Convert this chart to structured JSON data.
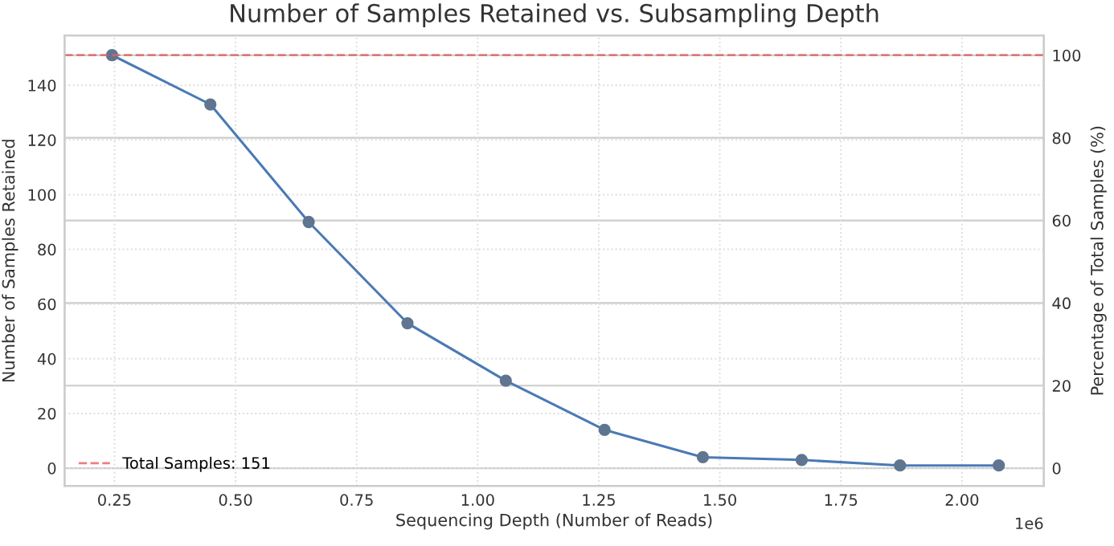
{
  "chart_data": {
    "type": "line",
    "title": "Number of Samples Retained vs. Subsampling Depth",
    "xlabel": "Sequencing Depth (Number of Reads)",
    "ylabel": "Number of Samples Retained",
    "y2label": "Percentage of Total Samples (%)",
    "x": [
      0.245,
      0.448,
      0.651,
      0.855,
      1.058,
      1.262,
      1.465,
      1.669,
      1.872,
      2.076
    ],
    "series": [
      {
        "color": "#4a7ab5",
        "values": [
          151,
          133,
          90,
          53,
          32,
          14,
          4,
          3,
          1,
          1
        ]
      }
    ],
    "xlim": [
      0.147,
      2.169
    ],
    "xticks": [
      0.25,
      {
        "value": 0.5,
        "label": "0.50"
      },
      0.75,
      {
        "value": 1.0,
        "label": "1.00"
      },
      1.25,
      {
        "value": 1.5,
        "label": "1.50"
      },
      1.75,
      {
        "value": 2.0,
        "label": "2.00"
      }
    ],
    "ylim": [
      -6.5,
      158.2
    ],
    "yticks": [
      0,
      20,
      40,
      60,
      80,
      100,
      120,
      140
    ],
    "y2lim": [
      -4.3,
      104.8
    ],
    "y2ticks": [
      0,
      20,
      40,
      60,
      80,
      100
    ],
    "ref_lines": [
      {
        "axis": "y",
        "value": 151,
        "label": "Total Samples: 151",
        "color": "#e06060",
        "line_style": "dashed"
      }
    ],
    "annotations": [
      "1e6"
    ],
    "grid": true,
    "legend": "bottom left",
    "marker": "circle",
    "line_style": "solid"
  }
}
